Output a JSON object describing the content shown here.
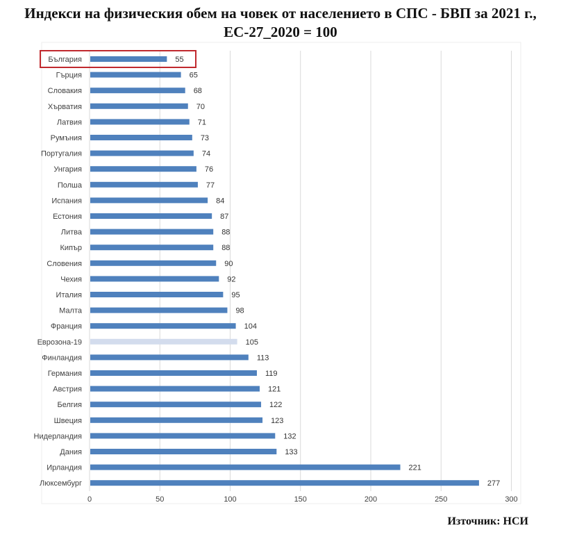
{
  "title_line1": "Индекси на физическия обем на човек от населението в СПС - БВП за 2021 г.,",
  "title_line2": "ЕС-27_2020 = 100",
  "source": "Източник: НСИ",
  "colors": {
    "bar": "#4f81bd",
    "bar_highlight": "#d3dced",
    "highlight_box": "#c0282d",
    "grid": "#d9d9d9",
    "label": "#404040"
  },
  "chart_data": {
    "type": "bar",
    "orientation": "horizontal",
    "categories": [
      "България",
      "Гърция",
      "Словакия",
      "Хърватия",
      "Латвия",
      "Румъния",
      "Португалия",
      "Унгария",
      "Полша",
      "Испания",
      "Естония",
      "Литва",
      "Кипър",
      "Словения",
      "Чехия",
      "Италия",
      "Малта",
      "Франция",
      "Еврозона-19",
      "Финландия",
      "Германия",
      "Австрия",
      "Белгия",
      "Швеция",
      "Нидерландия",
      "Дания",
      "Ирландия",
      "Люксембург"
    ],
    "values": [
      55,
      65,
      68,
      70,
      71,
      73,
      74,
      76,
      77,
      84,
      87,
      88,
      88,
      90,
      92,
      95,
      98,
      104,
      105,
      113,
      119,
      121,
      122,
      123,
      132,
      133,
      221,
      277
    ],
    "xlim": [
      0,
      300
    ],
    "xticks": [
      0,
      50,
      100,
      150,
      200,
      250,
      300
    ],
    "highlighted_category": "Еврозона-19",
    "boxed_category": "България",
    "grid": true,
    "legend": "none"
  }
}
